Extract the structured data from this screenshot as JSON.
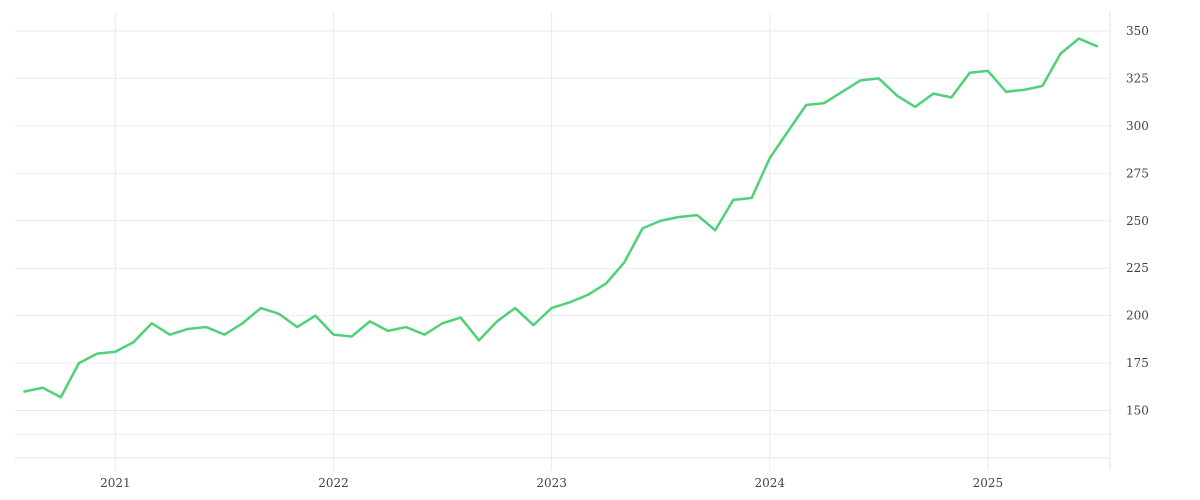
{
  "chart_data": {
    "type": "line",
    "title": "",
    "xlabel": "",
    "ylabel": "",
    "grid": true,
    "legend": "none",
    "y_axis_side": "right",
    "xlim": [
      2020.54,
      2025.56
    ],
    "ylim": [
      125,
      360
    ],
    "x_ticks": [
      {
        "value": 2021,
        "label": "2021"
      },
      {
        "value": 2022,
        "label": "2022"
      },
      {
        "value": 2023,
        "label": "2023"
      },
      {
        "value": 2024,
        "label": "2024"
      },
      {
        "value": 2025,
        "label": "2025"
      }
    ],
    "y_ticks": [
      {
        "value": 150,
        "label": "150"
      },
      {
        "value": 175,
        "label": "175"
      },
      {
        "value": 200,
        "label": "200"
      },
      {
        "value": 225,
        "label": "225"
      },
      {
        "value": 250,
        "label": "250"
      },
      {
        "value": 275,
        "label": "275"
      },
      {
        "value": 300,
        "label": "300"
      },
      {
        "value": 325,
        "label": "325"
      },
      {
        "value": 350,
        "label": "350"
      }
    ],
    "series": [
      {
        "color": "#4fd17a",
        "x": [
          2020.583,
          2020.667,
          2020.75,
          2020.833,
          2020.917,
          2021.0,
          2021.083,
          2021.167,
          2021.25,
          2021.333,
          2021.417,
          2021.5,
          2021.583,
          2021.667,
          2021.75,
          2021.833,
          2021.917,
          2022.0,
          2022.083,
          2022.167,
          2022.25,
          2022.333,
          2022.417,
          2022.5,
          2022.583,
          2022.667,
          2022.75,
          2022.833,
          2022.917,
          2023.0,
          2023.083,
          2023.167,
          2023.25,
          2023.333,
          2023.417,
          2023.5,
          2023.583,
          2023.667,
          2023.75,
          2023.833,
          2023.917,
          2024.0,
          2024.083,
          2024.167,
          2024.25,
          2024.333,
          2024.417,
          2024.5,
          2024.583,
          2024.667,
          2024.75,
          2024.833,
          2024.917,
          2025.0,
          2025.083,
          2025.167,
          2025.25,
          2025.333,
          2025.417,
          2025.5
        ],
        "y": [
          160,
          162,
          157,
          175,
          180,
          181,
          186,
          196,
          190,
          193,
          194,
          190,
          196,
          204,
          201,
          194,
          200,
          190,
          189,
          197,
          192,
          194,
          190,
          196,
          199,
          187,
          197,
          204,
          195,
          204,
          207,
          211,
          217,
          228,
          246,
          250,
          252,
          253,
          245,
          261,
          262,
          283,
          297,
          311,
          312,
          318,
          324,
          325,
          316,
          310,
          317,
          315,
          328,
          329,
          318,
          319,
          321,
          338,
          346,
          342
        ]
      }
    ]
  }
}
